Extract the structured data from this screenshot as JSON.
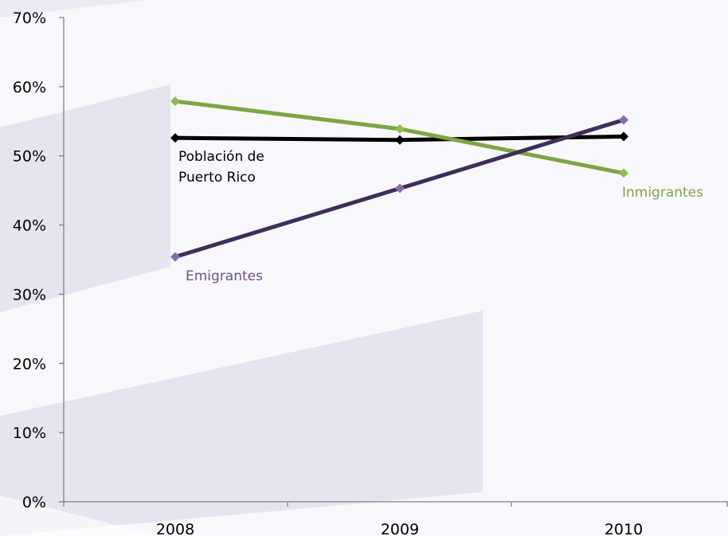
{
  "chart_data": {
    "type": "line",
    "title": "",
    "xlabel": "",
    "ylabel": "",
    "categories": [
      "2008",
      "2009",
      "2010"
    ],
    "y_ticks": [
      "0%",
      "10%",
      "20%",
      "30%",
      "40%",
      "50%",
      "60%",
      "70%"
    ],
    "ylim": [
      0,
      70
    ],
    "grid": false,
    "series": [
      {
        "name": "Población de Puerto Rico",
        "label_lines": [
          "Población de",
          "Puerto Rico"
        ],
        "values": [
          52.6,
          52.3,
          52.8
        ],
        "color": "#000000"
      },
      {
        "name": "Inmigrantes",
        "label_lines": [
          "Inmigrantes"
        ],
        "values": [
          57.9,
          53.9,
          47.5
        ],
        "color": "#7ea544"
      },
      {
        "name": "Emigrantes",
        "label_lines": [
          "Emigrantes"
        ],
        "values": [
          35.4,
          45.3,
          55.2
        ],
        "color": "#3f2d5a"
      }
    ]
  }
}
